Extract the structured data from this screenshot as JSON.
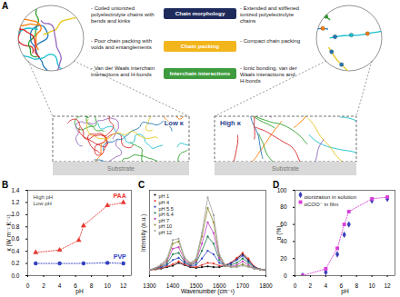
{
  "panel_labels": [
    "A",
    "B",
    "C",
    "D"
  ],
  "diagram": {
    "left": {
      "label": "Low κ",
      "points": [
        "- Coiled unionized polyelectrolyte chains with bends and kinks",
        "- Poor chain packing with voids and entanglements",
        "- Van der Waals interchain interactions and H-bonds"
      ]
    },
    "center": [
      {
        "text": "Chain morphology",
        "color": "#1f2a5c"
      },
      {
        "text": "Chain packing",
        "color": "#f2b51c"
      },
      {
        "text": "Interchain interactions",
        "color": "#3e9b3e"
      }
    ],
    "right": {
      "label": "High κ",
      "points": [
        "- Extended and stiffened ionized polyelectrolyte chains",
        "- Compact chain packing",
        "- Ionic bonding, van der Waals interactions and H-bonds"
      ]
    },
    "substrate": "Substrate"
  },
  "chart_data": [
    {
      "type": "scatter",
      "xlabel": "pH",
      "ylabel": "κ (W m⁻¹ K⁻¹)",
      "xlim": [
        0,
        13
      ],
      "ylim": [
        0,
        1.4
      ],
      "xticks": [
        0,
        2,
        4,
        6,
        8,
        10,
        12
      ],
      "yticks": [
        {
          "value": 0,
          "label": "0.0"
        },
        {
          "value": 0.2,
          "label": "0.2"
        },
        {
          "value": 0.4,
          "label": "0.4"
        },
        {
          "value": 0.6,
          "label": "0.6"
        },
        {
          "value": 0.8,
          "label": "0.8"
        },
        {
          "value": 1,
          "label": "1.0"
        },
        {
          "value": 1.2,
          "label": "1.2"
        },
        {
          "value": 1.4,
          "label": "1.4"
        }
      ],
      "line_style": "dotted",
      "annotations": [
        "High pH",
        "Low pH"
      ],
      "series": [
        {
          "name": "PAA",
          "color": "#e8392f",
          "marker": "triangle",
          "x": [
            1,
            4,
            6.4,
            7,
            10,
            12
          ],
          "values": [
            0.38,
            0.42,
            0.58,
            0.82,
            1.15,
            1.2
          ]
        },
        {
          "name": "PVP",
          "color": "#2f3fbf",
          "marker": "circle",
          "x": [
            1,
            4,
            7,
            10,
            12
          ],
          "values": [
            0.2,
            0.2,
            0.2,
            0.21,
            0.2
          ]
        }
      ]
    },
    {
      "type": "line",
      "xlabel": "Wavenumber (cm⁻¹)",
      "ylabel": "Intensity (a.u.)",
      "x": [
        1300,
        1325,
        1350,
        1375,
        1400,
        1425,
        1450,
        1475,
        1500,
        1525,
        1550,
        1575,
        1600,
        1625,
        1650,
        1675,
        1700,
        1725,
        1750,
        1775,
        1800
      ],
      "xlim": [
        1300,
        1800
      ],
      "ylim": [
        0,
        1.2
      ],
      "xticks": [
        1300,
        1400,
        1500,
        1600,
        1700,
        1800
      ],
      "tick_labels": "x",
      "marker": "circle",
      "line_style": "solid",
      "legend": "top-left",
      "series": [
        {
          "name": "pH 1",
          "color": "#000000",
          "values": [
            0.08,
            0.09,
            0.1,
            0.12,
            0.14,
            0.18,
            0.15,
            0.12,
            0.11,
            0.12,
            0.13,
            0.12,
            0.12,
            0.14,
            0.18,
            0.24,
            0.3,
            0.22,
            0.12,
            0.09,
            0.08
          ]
        },
        {
          "name": "pH 4",
          "color": "#e8392f",
          "values": [
            0.08,
            0.09,
            0.11,
            0.13,
            0.16,
            0.2,
            0.16,
            0.13,
            0.12,
            0.15,
            0.18,
            0.17,
            0.14,
            0.15,
            0.18,
            0.25,
            0.32,
            0.24,
            0.13,
            0.09,
            0.08
          ]
        },
        {
          "name": "pH 5.5",
          "color": "#2f3fbf",
          "values": [
            0.08,
            0.1,
            0.12,
            0.15,
            0.22,
            0.25,
            0.18,
            0.14,
            0.15,
            0.24,
            0.35,
            0.3,
            0.18,
            0.15,
            0.17,
            0.22,
            0.28,
            0.2,
            0.12,
            0.09,
            0.08
          ]
        },
        {
          "name": "pH 6.4",
          "color": "#1d7a4a",
          "values": [
            0.08,
            0.1,
            0.13,
            0.17,
            0.3,
            0.32,
            0.2,
            0.15,
            0.18,
            0.35,
            0.55,
            0.45,
            0.22,
            0.14,
            0.15,
            0.18,
            0.24,
            0.18,
            0.11,
            0.09,
            0.08
          ]
        },
        {
          "name": "pH 7",
          "color": "#c03fc0",
          "values": [
            0.08,
            0.1,
            0.14,
            0.2,
            0.38,
            0.4,
            0.22,
            0.16,
            0.2,
            0.45,
            0.75,
            0.6,
            0.25,
            0.14,
            0.13,
            0.15,
            0.2,
            0.15,
            0.1,
            0.09,
            0.08
          ]
        },
        {
          "name": "pH 10",
          "color": "#8a8a2a",
          "values": [
            0.08,
            0.1,
            0.15,
            0.22,
            0.45,
            0.48,
            0.25,
            0.17,
            0.22,
            0.55,
            0.95,
            0.75,
            0.28,
            0.14,
            0.12,
            0.13,
            0.16,
            0.13,
            0.1,
            0.09,
            0.08
          ]
        },
        {
          "name": "pH 12",
          "color": "#a0a0a0",
          "values": [
            0.08,
            0.11,
            0.16,
            0.24,
            0.5,
            0.52,
            0.26,
            0.18,
            0.24,
            0.6,
            1.1,
            0.85,
            0.3,
            0.15,
            0.12,
            0.12,
            0.14,
            0.12,
            0.1,
            0.09,
            0.08
          ]
        }
      ]
    },
    {
      "type": "scatter",
      "xlabel": "pH",
      "ylabel": "α (%)",
      "xlim": [
        0,
        13
      ],
      "ylim": [
        0,
        100
      ],
      "xticks": [
        0,
        2,
        4,
        6,
        8,
        10,
        12
      ],
      "yticks": [
        0,
        20,
        40,
        60,
        80,
        100
      ],
      "legend": "top-left",
      "series": [
        {
          "name": "αionization in solution",
          "color": "#3a3fb8",
          "marker": "diamond",
          "line_style": "none",
          "x": [
            1,
            4,
            5.5,
            6.4,
            7,
            10,
            12
          ],
          "values": [
            0,
            4,
            25,
            48,
            60,
            88,
            90
          ]
        },
        {
          "name": "αCOO⁻ in film",
          "color": "#d63fd6",
          "marker": "square",
          "line_style": "dotted",
          "x": [
            1,
            4,
            5.5,
            6.4,
            7,
            10,
            12
          ],
          "values": [
            0,
            8,
            32,
            60,
            75,
            90,
            92
          ]
        }
      ]
    }
  ]
}
